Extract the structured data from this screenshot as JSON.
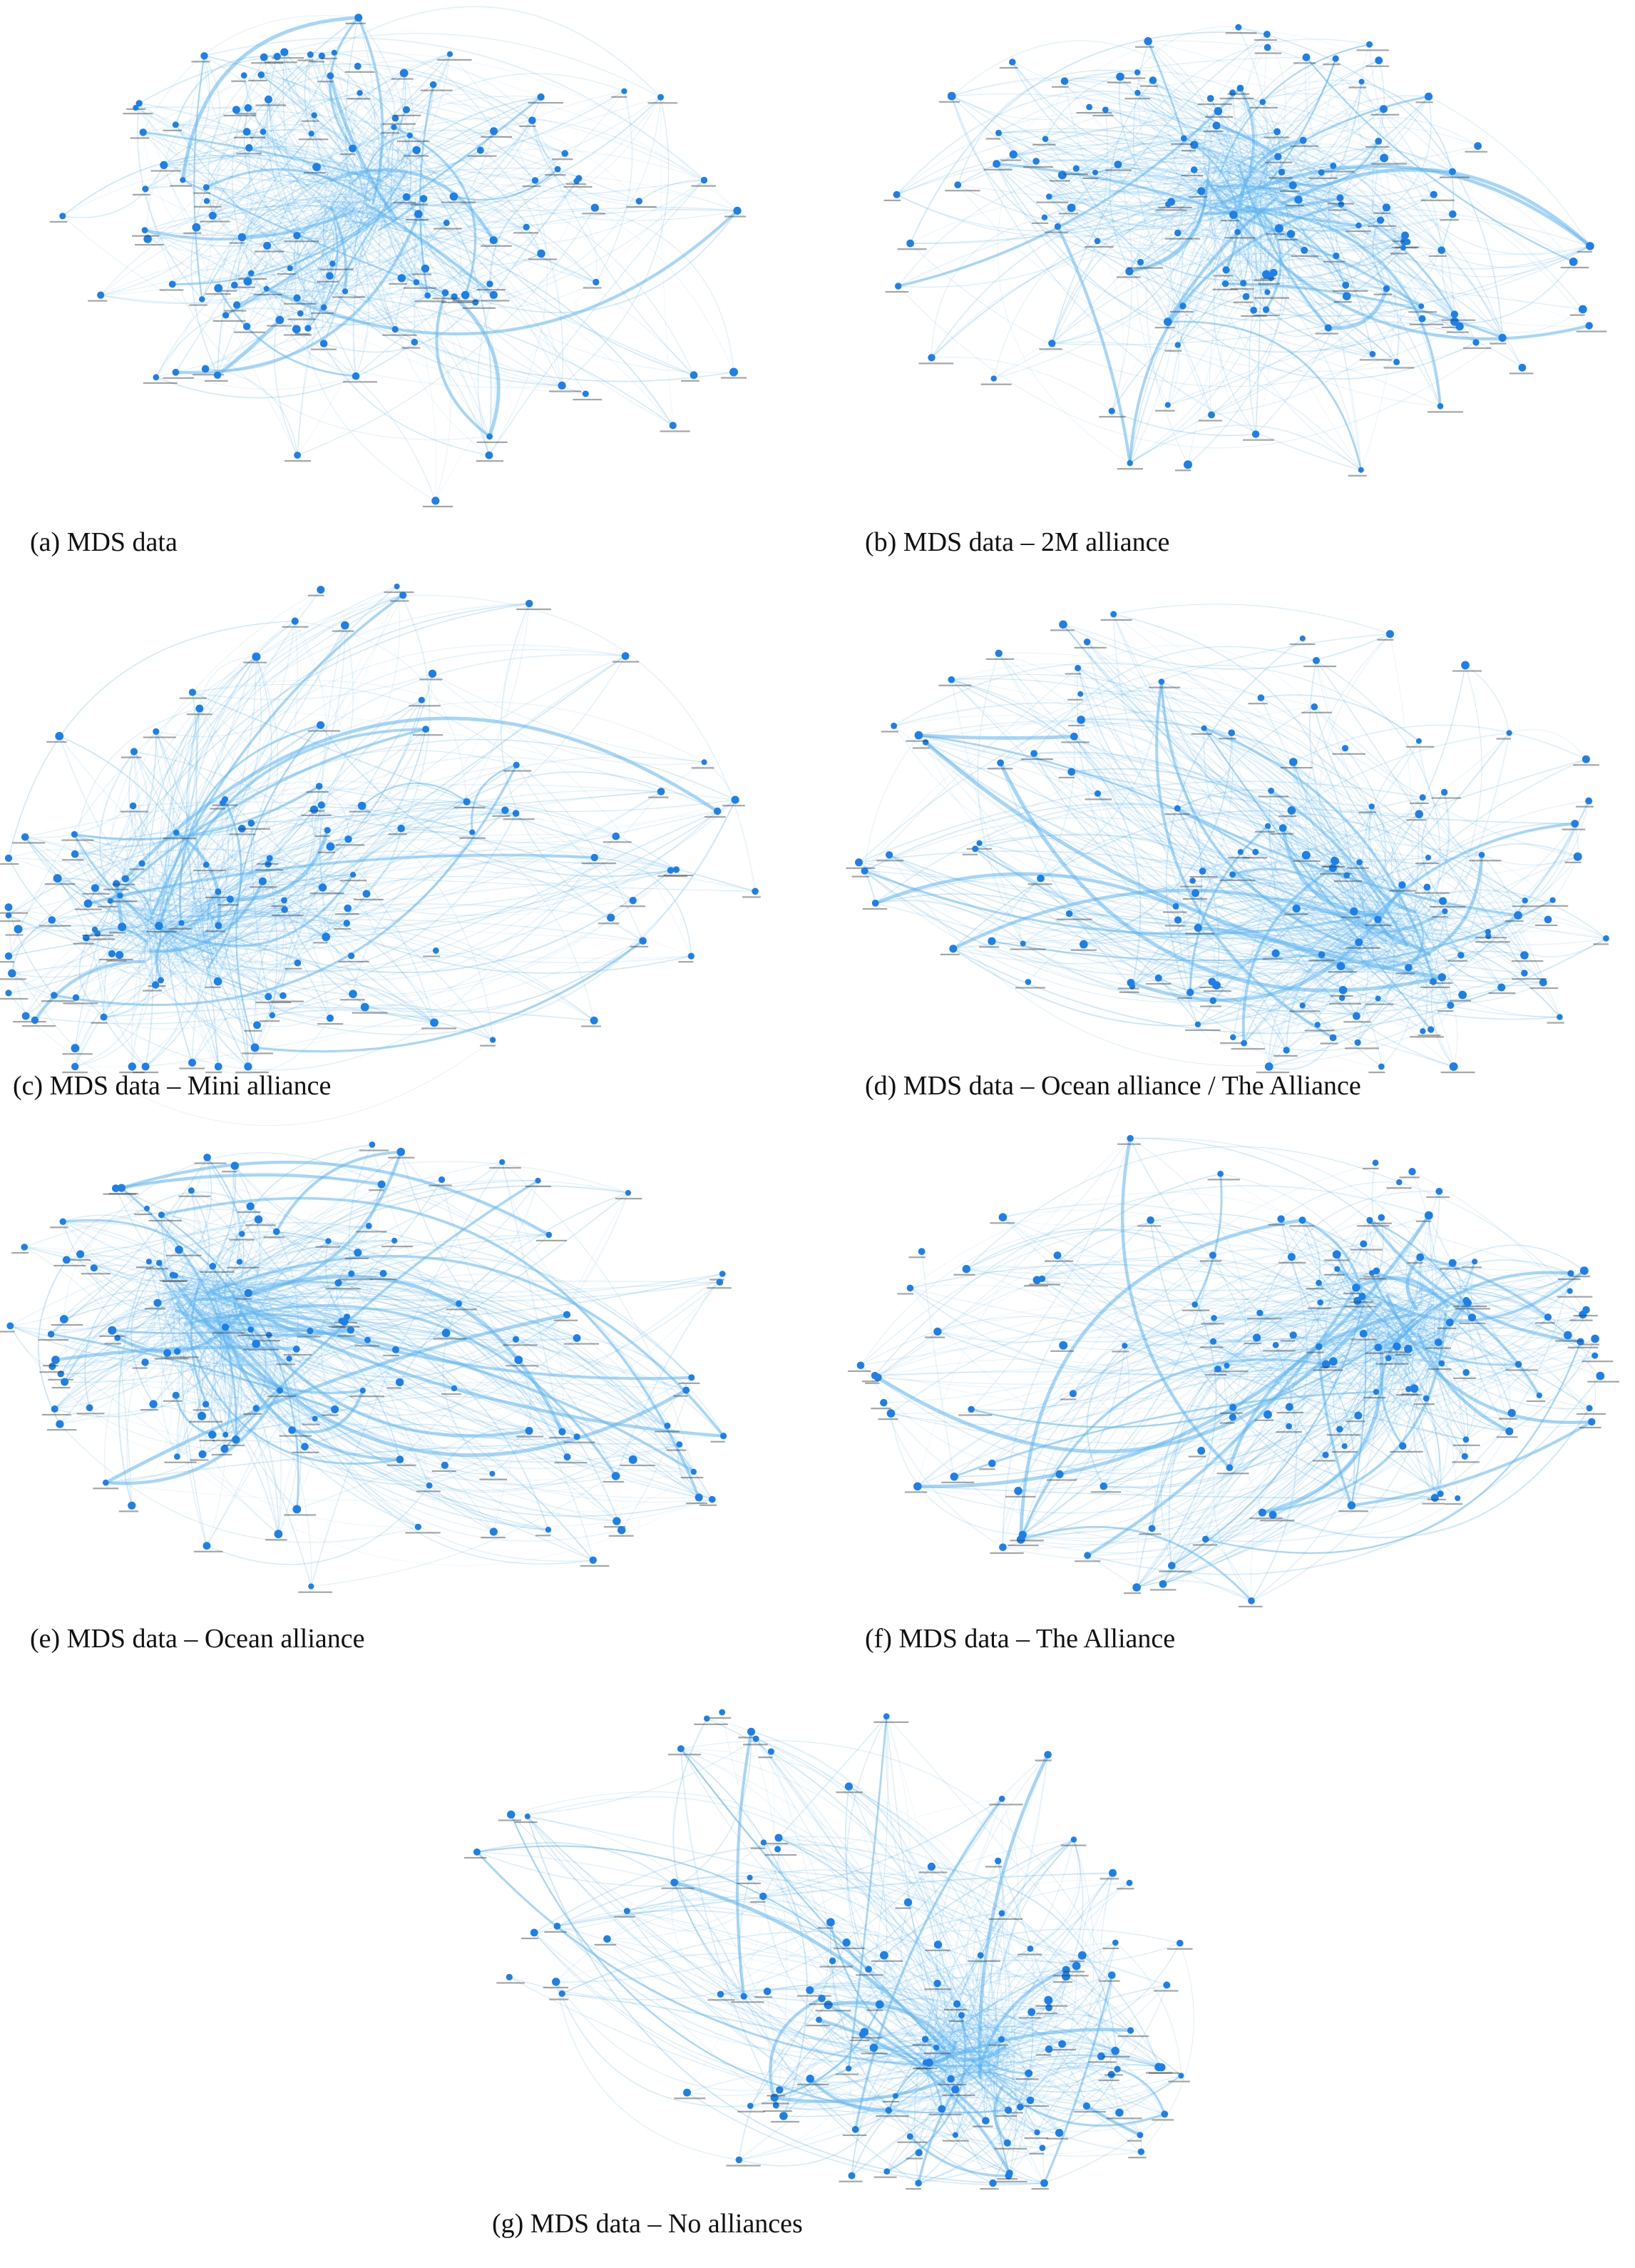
{
  "figure": {
    "edge_color": "#5db4f0",
    "node_color": "#1e80e6",
    "label_color": "#3a3a3a",
    "panels": [
      {
        "id": "a",
        "caption": "(a) MDS data",
        "seed": 11,
        "node_count": 120,
        "edge_count": 520,
        "bias": "center-top"
      },
      {
        "id": "b",
        "caption": "(b) MDS data – 2M alliance",
        "seed": 23,
        "node_count": 125,
        "edge_count": 560,
        "bias": "top"
      },
      {
        "id": "c",
        "caption": "(c) MDS data – Mini alliance",
        "seed": 37,
        "node_count": 120,
        "edge_count": 520,
        "bias": "bottom-left"
      },
      {
        "id": "d",
        "caption": "(d) MDS data – Ocean alliance / The Alliance",
        "seed": 41,
        "node_count": 125,
        "edge_count": 540,
        "bias": "bottom-right"
      },
      {
        "id": "e",
        "caption": "(e) MDS data – Ocean alliance",
        "seed": 53,
        "node_count": 125,
        "edge_count": 560,
        "bias": "left"
      },
      {
        "id": "f",
        "caption": "(f) MDS data – The Alliance",
        "seed": 67,
        "node_count": 125,
        "edge_count": 560,
        "bias": "right"
      },
      {
        "id": "g",
        "caption": "(g) MDS data – No alliances",
        "seed": 79,
        "node_count": 120,
        "edge_count": 520,
        "bias": "bottom-right"
      }
    ]
  }
}
